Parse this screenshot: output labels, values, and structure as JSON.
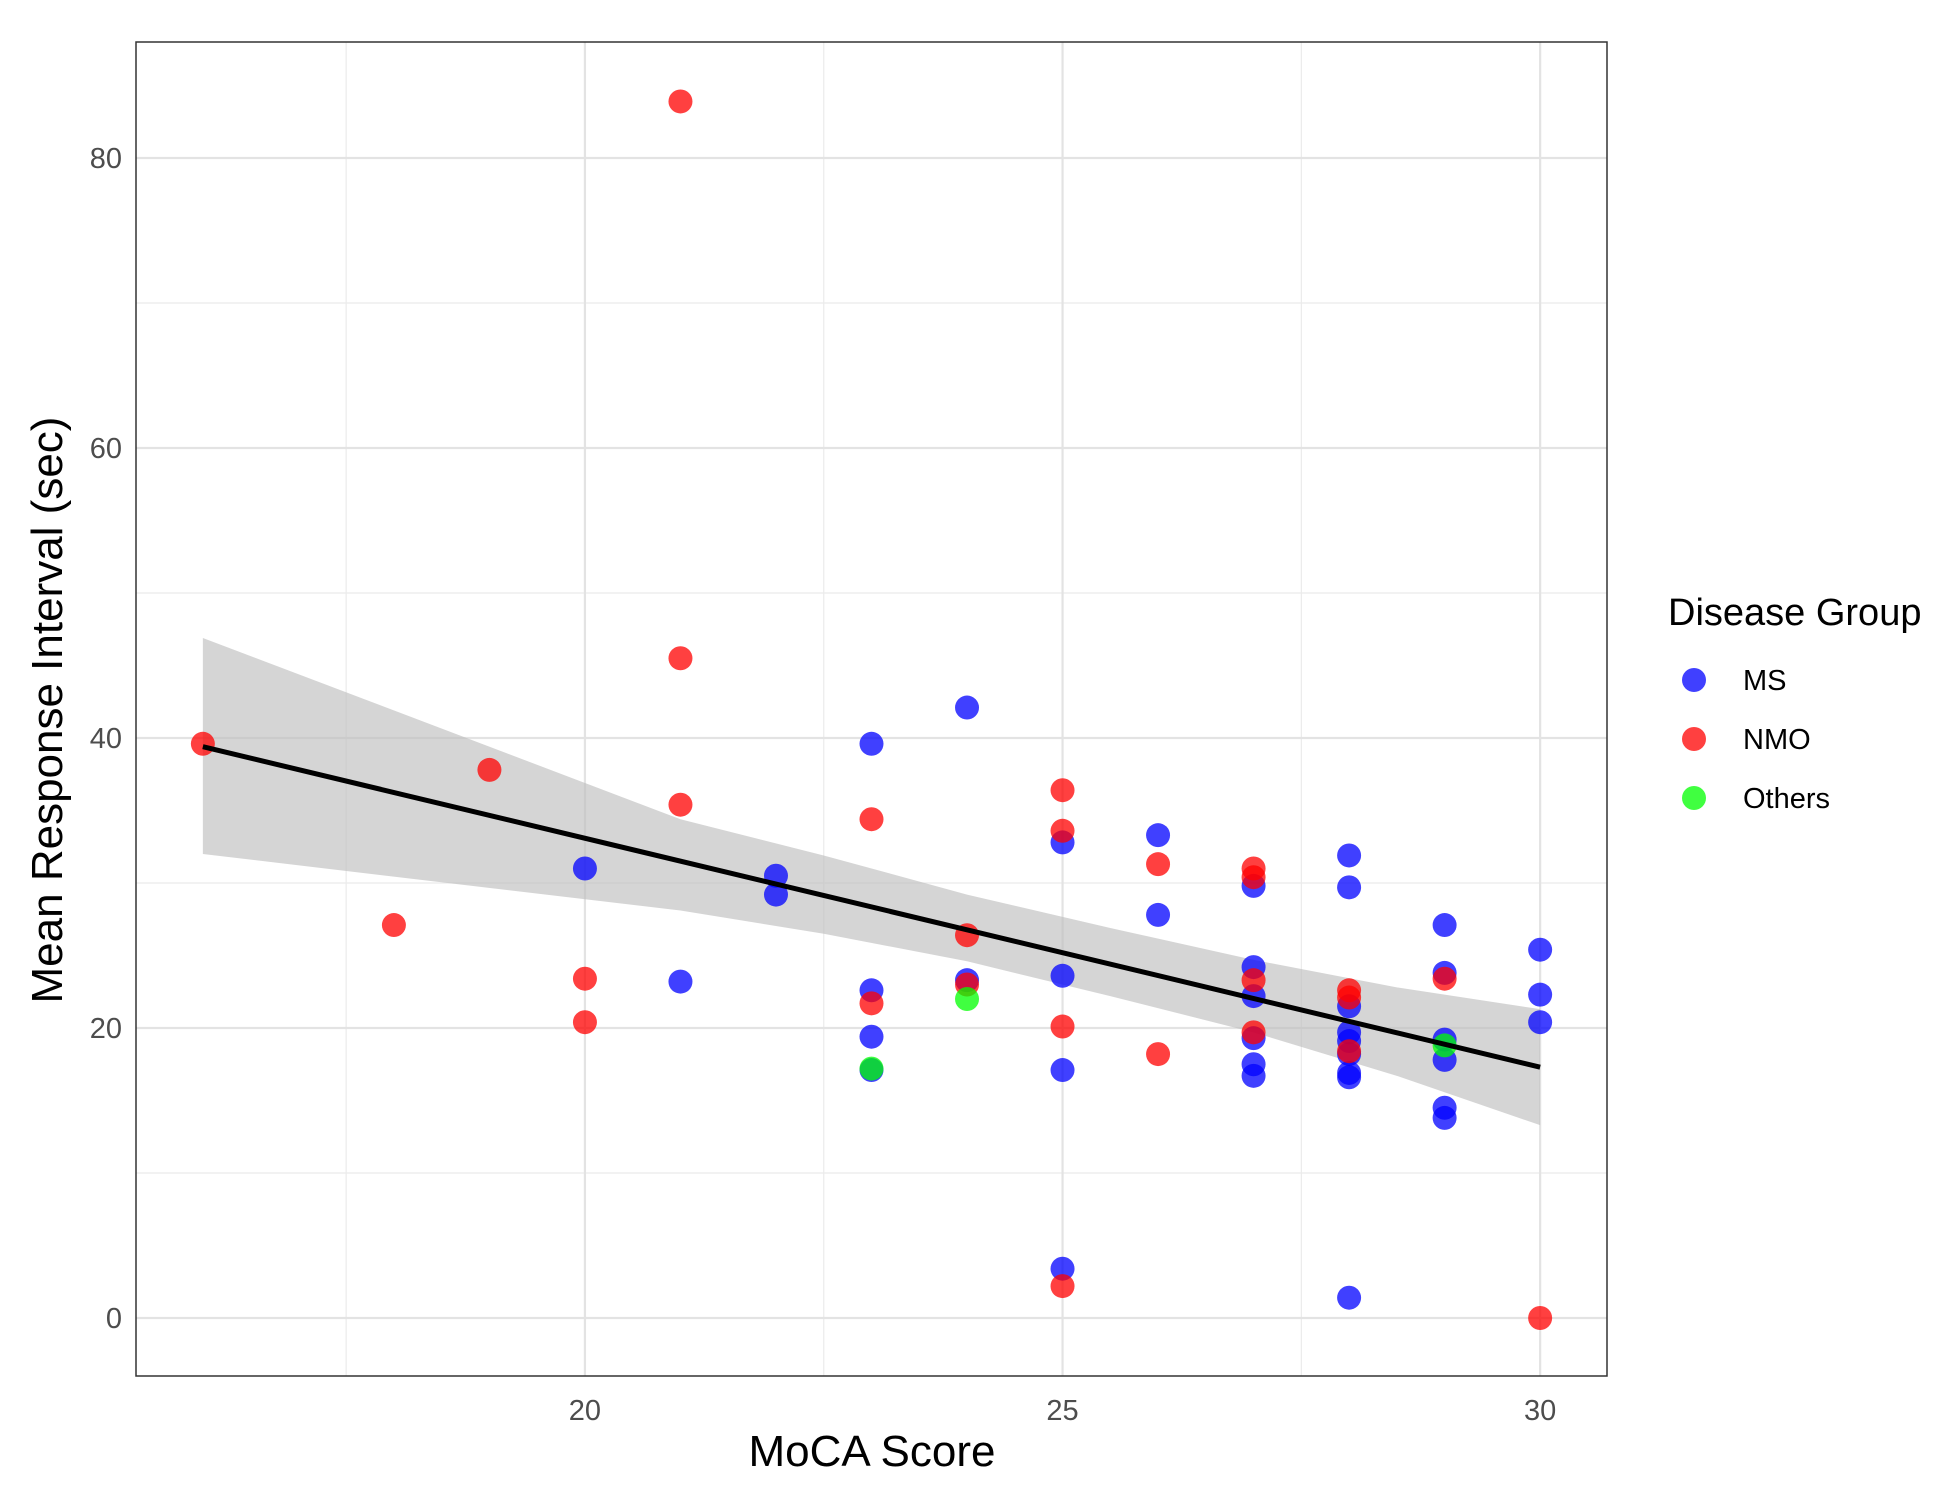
{
  "chart_data": {
    "type": "scatter",
    "title": "",
    "xlabel": "MoCA Score",
    "ylabel": "Mean Response Interval (sec)",
    "xlim": [
      15.3,
      30.7
    ],
    "ylim": [
      -4,
      88
    ],
    "x_ticks": [
      20,
      25,
      30
    ],
    "y_ticks": [
      0,
      20,
      40,
      60,
      80
    ],
    "x_tick_labels": [
      "20",
      "25",
      "30"
    ],
    "y_tick_labels": [
      "0",
      "20",
      "40",
      "60",
      "80"
    ],
    "grid": true,
    "legend": {
      "title": "Disease Group",
      "position": "right",
      "entries": [
        {
          "label": "MS",
          "color": "#0000ff"
        },
        {
          "label": "NMO",
          "color": "#ff0000"
        },
        {
          "label": "Others",
          "color": "#00ff00"
        }
      ]
    },
    "point_alpha": 0.75,
    "series": [
      {
        "name": "MS",
        "color": "#0000ff",
        "points": [
          [
            20,
            31
          ],
          [
            21,
            23.2
          ],
          [
            22,
            30.5
          ],
          [
            22,
            29.2
          ],
          [
            23,
            39.6
          ],
          [
            23,
            22.6
          ],
          [
            23,
            19.4
          ],
          [
            23,
            17.1
          ],
          [
            24,
            42.1
          ],
          [
            24,
            23.3
          ],
          [
            25,
            32.8
          ],
          [
            25,
            23.6
          ],
          [
            25,
            17.1
          ],
          [
            25,
            3.4
          ],
          [
            26,
            33.3
          ],
          [
            26,
            27.8
          ],
          [
            27,
            29.8
          ],
          [
            27,
            24.2
          ],
          [
            27,
            22.2
          ],
          [
            27,
            19.3
          ],
          [
            27,
            17.5
          ],
          [
            27,
            16.7
          ],
          [
            28,
            31.9
          ],
          [
            28,
            29.7
          ],
          [
            28,
            21.5
          ],
          [
            28,
            19.7
          ],
          [
            28,
            19.1
          ],
          [
            28,
            18.2
          ],
          [
            28,
            16.9
          ],
          [
            28,
            16.6
          ],
          [
            28,
            1.4
          ],
          [
            29,
            27.1
          ],
          [
            29,
            23.8
          ],
          [
            29,
            19.2
          ],
          [
            29,
            17.8
          ],
          [
            29,
            14.5
          ],
          [
            29,
            13.8
          ],
          [
            30,
            25.4
          ],
          [
            30,
            22.3
          ],
          [
            30,
            20.4
          ]
        ]
      },
      {
        "name": "NMO",
        "color": "#ff0000",
        "points": [
          [
            16,
            39.6
          ],
          [
            18,
            27.1
          ],
          [
            19,
            37.8
          ],
          [
            20,
            23.4
          ],
          [
            20,
            20.4
          ],
          [
            21,
            83.9
          ],
          [
            21,
            45.5
          ],
          [
            21,
            35.4
          ],
          [
            23,
            34.4
          ],
          [
            23,
            21.7
          ],
          [
            24,
            26.4
          ],
          [
            24,
            23
          ],
          [
            25,
            36.4
          ],
          [
            25,
            33.6
          ],
          [
            25,
            20.1
          ],
          [
            25,
            2.2
          ],
          [
            26,
            31.3
          ],
          [
            26,
            18.2
          ],
          [
            27,
            31
          ],
          [
            27,
            30.4
          ],
          [
            27,
            23.3
          ],
          [
            27,
            19.7
          ],
          [
            28,
            22.6
          ],
          [
            28,
            22.1
          ],
          [
            28,
            18.4
          ],
          [
            29,
            23.4
          ],
          [
            30,
            0
          ]
        ]
      },
      {
        "name": "Others",
        "color": "#00ff00",
        "points": [
          [
            23,
            17.2
          ],
          [
            24,
            22
          ],
          [
            29,
            18.8
          ]
        ]
      }
    ],
    "regression": {
      "type": "linear",
      "color": "#000000",
      "x_range": [
        16,
        30
      ],
      "fit": [
        [
          16,
          39.4
        ],
        [
          30,
          17.3
        ]
      ],
      "confidence_band": {
        "color": "#bebebe",
        "x": [
          16,
          21,
          22.5,
          24,
          25.5,
          27,
          28.5,
          30
        ],
        "upper": [
          46.9,
          34.4,
          31.9,
          29.2,
          26.9,
          24.7,
          22.8,
          21.3
        ],
        "lower": [
          32,
          28.1,
          26.5,
          24.6,
          22.2,
          19.7,
          16.7,
          13.3
        ]
      }
    }
  }
}
